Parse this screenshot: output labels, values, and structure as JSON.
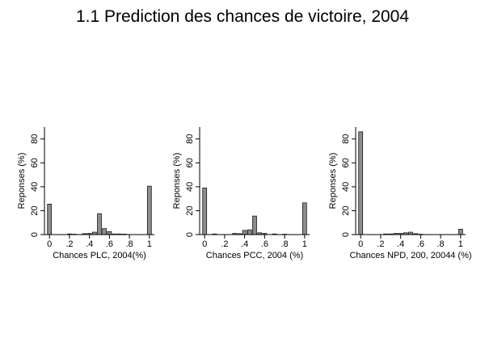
{
  "title": "1.1 Prediction des chances de victoire, 2004",
  "chart_data": [
    {
      "type": "bar",
      "xlabel": "Chances PLC, 2004(%)",
      "ylabel": "Reponses (%)",
      "xlim": [
        -0.05,
        1.05
      ],
      "ylim": [
        0,
        90
      ],
      "xticks": [
        "0",
        ".2",
        ".4",
        ".6",
        ".8",
        "1"
      ],
      "xtick_values": [
        0,
        0.2,
        0.4,
        0.6,
        0.8,
        1
      ],
      "yticks": [
        "0",
        "20",
        "40",
        "60",
        "80"
      ],
      "ytick_values": [
        0,
        20,
        40,
        60,
        80
      ],
      "bar_width": 0.04,
      "x": [
        0,
        0.2,
        0.25,
        0.35,
        0.4,
        0.45,
        0.5,
        0.55,
        0.6,
        0.65,
        0.7,
        0.75,
        1
      ],
      "values": [
        25.5,
        0.5,
        0.3,
        0.8,
        1,
        2,
        17.5,
        5,
        2.5,
        0.5,
        0.5,
        0.4,
        40.5
      ]
    },
    {
      "type": "bar",
      "xlabel": "Chances PCC, 2004 (%)",
      "ylabel": "Reponses (%)",
      "xlim": [
        -0.05,
        1.05
      ],
      "ylim": [
        0,
        90
      ],
      "xticks": [
        "0",
        ".2",
        ".4",
        ".6",
        ".8",
        "1"
      ],
      "xtick_values": [
        0,
        0.2,
        0.4,
        0.6,
        0.8,
        1
      ],
      "yticks": [
        "0",
        "20",
        "40",
        "60",
        "80"
      ],
      "ytick_values": [
        0,
        20,
        40,
        60,
        80
      ],
      "bar_width": 0.04,
      "x": [
        0,
        0.1,
        0.3,
        0.35,
        0.4,
        0.45,
        0.5,
        0.55,
        0.6,
        0.7,
        0.8,
        1
      ],
      "values": [
        39,
        0.5,
        1,
        0.8,
        3.5,
        4,
        15.5,
        1.5,
        1,
        0.5,
        0.3,
        26.5
      ]
    },
    {
      "type": "bar",
      "xlabel": "Chances NPD, 200, 20044 (%)",
      "ylabel": "Reponses (%)",
      "xlim": [
        -0.05,
        1.05
      ],
      "ylim": [
        0,
        90
      ],
      "xticks": [
        "0",
        ".2",
        ".4",
        ".6",
        ".8",
        "1"
      ],
      "xtick_values": [
        0,
        0.2,
        0.4,
        0.6,
        0.8,
        1
      ],
      "yticks": [
        "0",
        "20",
        "40",
        "60",
        "80"
      ],
      "ytick_values": [
        0,
        20,
        40,
        60,
        80
      ],
      "bar_width": 0.04,
      "x": [
        0,
        0.25,
        0.3,
        0.35,
        0.4,
        0.45,
        0.5,
        0.55,
        0.6,
        1
      ],
      "values": [
        86,
        0.5,
        0.5,
        1,
        1,
        1.5,
        2,
        0.8,
        0.3,
        4.5
      ]
    }
  ],
  "colors": {
    "bar_fill": "#8c8c8c",
    "bar_stroke": "#1a1a1a",
    "axis": "#000000"
  }
}
